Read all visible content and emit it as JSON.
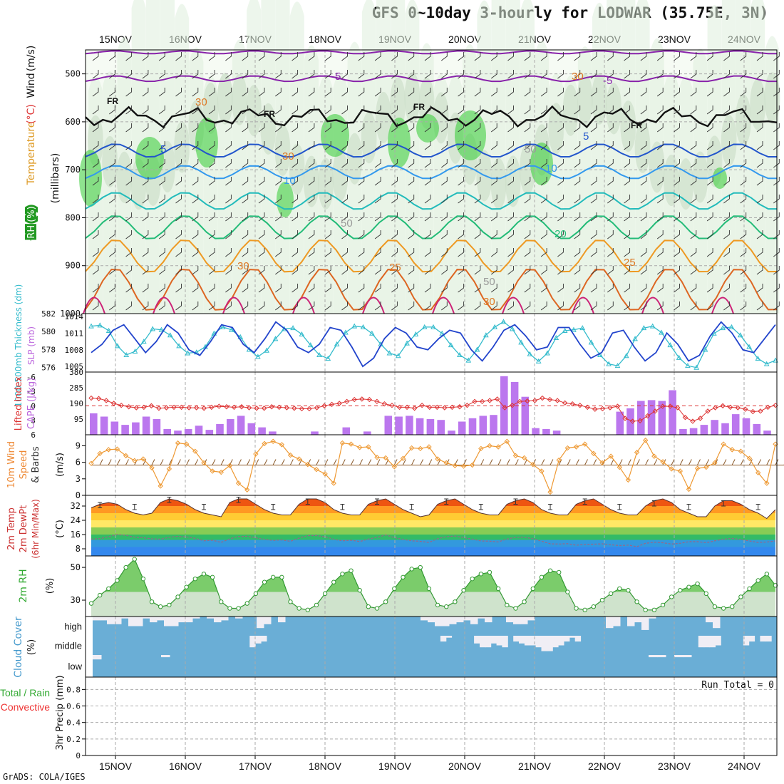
{
  "title": "GFS 0~10day 3-hourly for LODWAR (35.75E, 3N)",
  "footer": "GrADS: COLA/IGES",
  "colors": {
    "rh_green": "#33cc33",
    "temperature": "#ff6666",
    "thickness": "#33bbcc",
    "slp": "#2244cc",
    "lifted_index": "#dd3333",
    "cape": "#bb77ee",
    "wind_speed": "#ee9933",
    "barbs": "#8b5a2b",
    "rh2m": "#339933",
    "cloud": "#6aaed6",
    "precip_total": "#33aa33",
    "precip_conv": "#ee3333"
  },
  "chart_data": [
    {
      "id": "upper_air",
      "type": "heatmap",
      "dates": [
        "15NOV",
        "16NOV",
        "17NOV",
        "18NOV",
        "19NOV",
        "20NOV",
        "21NOV",
        "22NOV",
        "23NOV",
        "24NOV"
      ],
      "ylabel_parts": [
        {
          "text": "RH (%)",
          "color": "#229922"
        },
        {
          "text": "Temperature",
          "color": "#dd9922"
        },
        {
          "text": "(°C)",
          "color": "#dd3333"
        },
        {
          "text": "Wind",
          "color": "#111111"
        },
        {
          "text": "(m/s)",
          "color": "#111111"
        }
      ],
      "unit_label": "(millibars)",
      "yticks": [
        "500",
        "600",
        "700",
        "800",
        "900",
        "1000"
      ],
      "ylim": [
        1000,
        450
      ],
      "contour_labels": [
        "-5",
        "-5",
        "FR",
        "FR",
        "FR",
        "FR",
        "5",
        "5",
        "10",
        "10",
        "20",
        "25",
        "25",
        "30",
        "30",
        "50",
        "50",
        "30",
        "30",
        "50",
        "30"
      ]
    },
    {
      "id": "thickness_slp",
      "type": "line",
      "ylabel_left": "1000-500mb Thickness (dm)",
      "ylabel_right": "SLP (mb)",
      "left_ticks": [
        "576",
        "578",
        "580",
        "582"
      ],
      "right_ticks": [
        "1005",
        "1008",
        "1011",
        "1014"
      ],
      "series": [
        {
          "name": "Thickness",
          "values": [
            580.6,
            580.7,
            580.1,
            578.4,
            577.4,
            577.8,
            578.9,
            580.3,
            580.2,
            579.6,
            578.4,
            577.6,
            577.7,
            578.3,
            579.8,
            580.5,
            580.2,
            579.4,
            578.0,
            577.2,
            577.9,
            579.2,
            580.3,
            580.4,
            579.7,
            578.5,
            577.4,
            577.0,
            578.6,
            579.9,
            580.6,
            580.5,
            579.8,
            578.6,
            577.6,
            577.3,
            578.7,
            579.7,
            580.5,
            580.5,
            579.8,
            578.5,
            577.4,
            576.8,
            578.0,
            579.6,
            580.5,
            581.1,
            580.3,
            578.8,
            577.5,
            576.7,
            577.6,
            579.3,
            580.1,
            580.2,
            580.4,
            578.8,
            577.4,
            576.4,
            576.2,
            577.3,
            579.2,
            580.4,
            580.6,
            579.9,
            578.5,
            577.1,
            576.2,
            576.0,
            578.0,
            579.8,
            580.4,
            580.5,
            579.6,
            578.3,
            577.0,
            576.4,
            576.8
          ]
        },
        {
          "name": "SLP",
          "values": [
            1007.5,
            1009.0,
            1011.5,
            1012.5,
            1010.0,
            1007.5,
            1009.5,
            1012.5,
            1011.0,
            1008.0,
            1007.0,
            1009.5,
            1012.5,
            1012.0,
            1009.0,
            1007.5,
            1010.0,
            1013.0,
            1011.5,
            1008.5,
            1007.5,
            1009.0,
            1012.0,
            1011.5,
            1008.5,
            1005.0,
            1006.5,
            1010.0,
            1012.0,
            1011.0,
            1008.5,
            1008.0,
            1010.0,
            1011.5,
            1011.0,
            1008.0,
            1006.0,
            1008.5,
            1011.5,
            1012.5,
            1010.5,
            1008.0,
            1008.5,
            1012.0,
            1012.0,
            1009.0,
            1006.5,
            1007.5,
            1011.0,
            1011.5,
            1008.5,
            1006.0,
            1007.5,
            1011.0,
            1009.0,
            1006.0,
            1007.0,
            1010.5,
            1013.0,
            1011.0,
            1008.0,
            1007.5,
            1010.0,
            1012.5
          ]
        }
      ]
    },
    {
      "id": "cape_li",
      "type": "bar",
      "ylabel_left": "Lifted Index",
      "ylabel_right": "CAPE (J/kg)",
      "li_ticks": [
        "-6",
        "-3",
        "0",
        "3",
        "6"
      ],
      "cape_ticks": [
        "95",
        "190",
        "285",
        "380"
      ],
      "series": [
        {
          "name": "CAPE",
          "values": [
            130,
            110,
            80,
            60,
            75,
            110,
            95,
            35,
            25,
            35,
            55,
            30,
            65,
            95,
            115,
            70,
            45,
            20,
            0,
            0,
            0,
            20,
            0,
            0,
            45,
            0,
            20,
            0,
            115,
            110,
            115,
            100,
            95,
            90,
            25,
            80,
            100,
            115,
            120,
            355,
            320,
            230,
            40,
            35,
            25,
            0,
            0,
            0,
            0,
            0,
            140,
            160,
            205,
            210,
            205,
            270,
            35,
            40,
            60,
            90,
            70,
            125,
            100,
            65,
            25
          ]
        },
        {
          "name": "Lifted Index",
          "values": [
            -1.6,
            -1.5,
            -1.1,
            -0.5,
            -0.1,
            0.2,
            0.4,
            0.3,
            0.0,
            0.5,
            0.4,
            0.3,
            0.3,
            0.4,
            0.4,
            0.5,
            0.3,
            0.1,
            0.2,
            0.3,
            0.2,
            0.4,
            0.5,
            0.5,
            0.2,
            0.3,
            0.4,
            0.5,
            0.6,
            0.6,
            0.4,
            0.0,
            -0.3,
            -0.5,
            -0.9,
            -1.3,
            -1.4,
            -1.3,
            -0.9,
            -0.4,
            -0.1,
            0.3,
            0.3,
            0.5,
            -0.1,
            0.3,
            0.3,
            0.4,
            0.3,
            0.2,
            -0.1,
            -0.9,
            -0.9,
            -1.1,
            -1.4,
            0.4,
            -0.1,
            -0.9,
            -1.0,
            -1.1,
            -1.6,
            -1.3,
            -1.1,
            -0.6,
            -0.4,
            -0.1,
            0.3,
            0.7,
            0.6,
            0.4,
            0.1,
            2.6,
            3.2,
            3.1,
            2.1,
            1.1,
            0.1,
            0.1,
            0.4,
            2.4,
            3.2,
            2.6,
            1.1,
            0.4,
            0.0,
            0.3,
            0.4,
            0.7,
            1.2,
            1.1,
            0.3,
            -0.1
          ]
        }
      ]
    },
    {
      "id": "wind10m",
      "type": "line",
      "ylabel_parts": [
        {
          "text": "10m Wind",
          "color": "#ee8833"
        },
        {
          "text": "Speed",
          "color": "#ee8833"
        },
        {
          "text": "& Barbs",
          "color": "#333333"
        }
      ],
      "unit_label": "(m/s)",
      "yticks": [
        "0",
        "3",
        "6",
        "9"
      ],
      "ylim": [
        0,
        11
      ],
      "series": [
        {
          "name": "Speed",
          "values": [
            5.8,
            7.6,
            8.3,
            8.4,
            7.2,
            6.3,
            6.6,
            5.0,
            1.7,
            4.8,
            9.5,
            9.3,
            8.0,
            5.9,
            4.4,
            4.2,
            5.4,
            2.2,
            1.0,
            7.5,
            9.4,
            9.8,
            9.2,
            7.3,
            6.6,
            5.6,
            4.7,
            3.9,
            2.2,
            9.5,
            9.3,
            8.7,
            8.8,
            6.9,
            6.8,
            5.2,
            6.7,
            8.6,
            8.5,
            8.8,
            6.6,
            5.9,
            5.4,
            5.3,
            5.5,
            8.5,
            9.0,
            8.8,
            9.8,
            7.2,
            6.8,
            5.6,
            4.4,
            0.6,
            6.4,
            8.6,
            8.8,
            9.3,
            7.6,
            5.9,
            7.1,
            5.1,
            2.8,
            7.8,
            10.0,
            7.1,
            6.1,
            4.8,
            4.4,
            1.1,
            4.9,
            5.1,
            5.9,
            9.3,
            8.3,
            8.0,
            6.7,
            4.1,
            2.2,
            9.3
          ]
        }
      ]
    },
    {
      "id": "temp2m",
      "type": "area",
      "ylabel_parts": [
        {
          "text": "2m Temp",
          "color": "#cc3333"
        },
        {
          "text": "2m DewPt",
          "color": "#cc3333"
        },
        {
          "text": "(6hr Min/Max)",
          "color": "#cc3333"
        }
      ],
      "unit_label": "(°C)",
      "yticks": [
        "8",
        "16",
        "24",
        "32"
      ],
      "ylim": [
        4,
        38
      ],
      "series": [
        {
          "name": "Temp",
          "values": [
            31,
            33,
            34,
            33,
            30,
            28,
            27,
            28,
            34,
            36,
            35,
            33,
            30,
            28,
            27,
            26,
            34,
            36,
            36,
            33,
            30,
            28,
            27,
            27,
            33,
            36,
            36,
            34,
            30,
            28,
            27,
            27,
            33,
            35,
            36,
            33,
            30,
            28,
            26,
            27,
            33,
            35,
            36,
            33,
            30,
            28,
            27,
            27,
            33,
            35,
            36,
            34,
            30,
            28,
            27,
            27,
            33,
            35,
            36,
            33,
            30,
            28,
            27,
            27,
            32,
            35,
            36,
            34,
            30,
            28,
            26,
            26,
            32,
            35,
            35,
            33,
            30,
            28,
            25,
            30
          ]
        },
        {
          "name": "DewPt",
          "values": [
            13.5,
            13.7,
            14.8,
            16.0,
            15.6,
            14.5,
            14.2,
            13.6,
            13.4,
            14.5,
            15.0,
            14.7,
            13.9,
            12.5,
            12.8,
            11.6,
            13.6,
            14.9,
            15.1,
            14.2,
            13.3,
            12.7,
            13.0,
            12.2,
            14.0,
            15.4,
            15.4,
            14.8,
            13.3,
            12.5,
            12.8,
            12.1,
            13.5,
            14.4,
            15.8,
            14.3,
            13.3,
            12.5,
            12.2,
            11.6,
            13.7,
            14.8,
            15.2,
            14.3,
            13.4,
            12.4,
            12.3,
            11.9,
            13.5,
            14.5,
            14.5,
            13.7,
            12.3,
            10.8,
            10.7,
            10.9,
            10.0,
            10.5,
            10.6,
            10.8,
            10.3,
            9.8,
            10.1,
            9.2,
            11.1,
            11.7,
            11.4,
            10.7,
            11.1,
            12.0,
            12.0,
            11.4,
            12.5,
            13.4,
            13.8,
            13.3,
            12.4,
            11.6,
            11.8,
            12.4
          ]
        }
      ]
    },
    {
      "id": "rh2m",
      "type": "area",
      "ylabel_parts": [
        {
          "text": "2m RH",
          "color": "#33aa33"
        }
      ],
      "unit_label": "(%)",
      "yticks": [
        "30",
        "50"
      ],
      "ylim": [
        20,
        57
      ],
      "series": [
        {
          "name": "RH",
          "values": [
            28,
            33,
            37,
            42,
            50,
            55,
            43,
            29,
            26,
            27,
            32,
            38,
            43,
            46,
            44,
            29,
            25,
            25,
            28,
            34,
            41,
            44,
            44,
            29,
            25,
            24,
            27,
            34,
            41,
            46,
            48,
            36,
            26,
            25,
            29,
            37,
            44,
            49,
            50,
            37,
            27,
            26,
            29,
            36,
            43,
            46,
            47,
            37,
            27,
            25,
            29,
            37,
            44,
            48,
            47,
            35,
            25,
            24,
            26,
            30,
            34,
            37,
            36,
            29,
            24,
            24,
            27,
            32,
            36,
            38,
            40,
            34,
            26,
            25,
            26,
            32,
            37,
            42,
            46,
            39
          ]
        }
      ]
    },
    {
      "id": "cloud",
      "type": "heatmap",
      "ylabel": "Cloud Cover",
      "unit_label": "(%)",
      "layers": [
        "high",
        "middle",
        "low"
      ],
      "high": [
        0.2,
        0.2,
        0.4,
        0.4,
        0.1,
        0.5,
        0.5,
        0.1,
        0.3,
        0.2,
        0.5,
        0.5,
        0.3,
        0.3,
        0.1,
        0.0,
        0.1,
        0.3,
        0.2,
        0.0,
        0.1,
        0.0,
        0.0,
        0.6,
        0.4,
        0.0,
        0.3,
        0.0,
        0.0,
        0.0,
        0.0,
        0.0,
        0.0,
        0.0,
        0.0,
        0.0,
        0.0,
        0.0,
        0.0,
        0.0,
        0.0,
        0.0,
        0.0,
        0.0,
        0.0,
        0.0,
        0.2,
        0.3,
        0.5,
        0.5,
        0.4,
        0.3,
        0.2,
        0.4,
        0.1,
        0.3,
        0.0,
        0.0,
        0.3,
        0.4,
        0.4,
        0.2,
        0.0,
        0.0,
        0.0,
        0.0,
        0.0,
        0.0,
        0.0,
        0.0,
        0.0,
        0.0,
        0.6,
        0.5,
        0.0,
        0.5,
        0.3,
        0.7,
        0.1,
        0.0,
        0.0,
        0.0,
        0.0,
        0.0,
        0.0,
        0.0,
        0.3,
        0.6,
        0.0,
        0.0,
        0.0,
        0.0,
        0.0,
        0.0,
        0.0,
        0.0
      ],
      "middle": [
        0.0,
        0.0,
        0.0,
        0.0,
        0.0,
        0.0,
        0.0,
        0.0,
        0.0,
        0.0,
        0.0,
        0.0,
        0.0,
        0.0,
        0.0,
        0.0,
        0.0,
        0.0,
        0.0,
        0.0,
        0.0,
        0.0,
        0.0,
        0.0,
        0.0,
        0.0,
        0.0,
        0.0,
        0.6,
        0.4,
        0.3,
        0.0,
        0.0,
        0.0,
        0.0,
        0.0,
        0.0,
        0.0,
        0.0,
        0.0,
        0.0,
        0.0,
        0.0,
        0.0,
        0.0,
        0.0,
        0.0,
        0.0,
        0.0,
        0.0,
        0.0,
        0.0,
        0.0,
        0.0,
        0.0,
        0.0,
        0.0,
        0.0,
        0.0,
        0.0,
        0.0,
        0.0,
        0.3,
        0.1,
        0.0,
        0.0,
        0.0,
        0.0,
        0.4,
        0.6,
        0.6,
        0.4,
        0.5,
        0.6,
        0.0,
        0.3,
        0.4,
        0.5,
        0.5,
        0.6,
        0.8,
        0.8,
        0.6,
        0.5,
        0.3,
        0.1,
        0.3,
        0.0,
        0.0,
        0.0,
        0.0,
        0.0,
        0.0,
        0.0,
        0.0,
        0.0,
        0.0,
        0.0,
        0.0,
        0.0,
        0.0,
        0.0,
        0.0,
        0.0,
        0.0,
        0.0,
        0.0,
        0.0,
        0.6,
        0.6,
        0.6,
        0.5,
        0.0,
        0.0,
        0.0,
        0.0,
        0.5,
        0.3,
        0.0,
        0.3,
        0.3,
        0.0
      ],
      "low": [
        0.2,
        0.0,
        0.0,
        0.0,
        0.0,
        0.0,
        0.0,
        0.0,
        0.1,
        0.0,
        0.0,
        0.0,
        0.0,
        0.0,
        0.0,
        0.0,
        0.0,
        0.0,
        0.0,
        0.0,
        0.0,
        0.0,
        0.0,
        0.0,
        0.0,
        0.0,
        0.0,
        0.0,
        0.0,
        0.0,
        0.0,
        0.0,
        0.0,
        0.0,
        0.0,
        0.0,
        0.0,
        0.0,
        0.0,
        0.0,
        0.0,
        0.0,
        0.0,
        0.0,
        0.0,
        0.0,
        0.0,
        0.0,
        0.0,
        0.0,
        0.0,
        0.0,
        0.0,
        0.0,
        0.0,
        0.0,
        0.0,
        0.0,
        0.0,
        0.0,
        0.0,
        0.0,
        0.0,
        0.0,
        0.0,
        0.1,
        0.1,
        0.0,
        0.1,
        0.1,
        0.0,
        0.0,
        0.0,
        0.0,
        0.0,
        0.0,
        0.0,
        0.0,
        0.0,
        0.0
      ]
    },
    {
      "id": "precip",
      "type": "bar",
      "ylabel_parts": [
        {
          "text": "Total / Rain",
          "color": "#33aa33"
        },
        {
          "text": "Convective",
          "color": "#ee3333"
        },
        {
          "text": "3hr Precip (mm)",
          "color": "#111111"
        }
      ],
      "yticks": [
        "0",
        "0.2",
        "0.4",
        "0.6",
        "0.8"
      ],
      "ylim": [
        0,
        0.95
      ],
      "run_total": "Run Total = 0",
      "values": []
    }
  ]
}
